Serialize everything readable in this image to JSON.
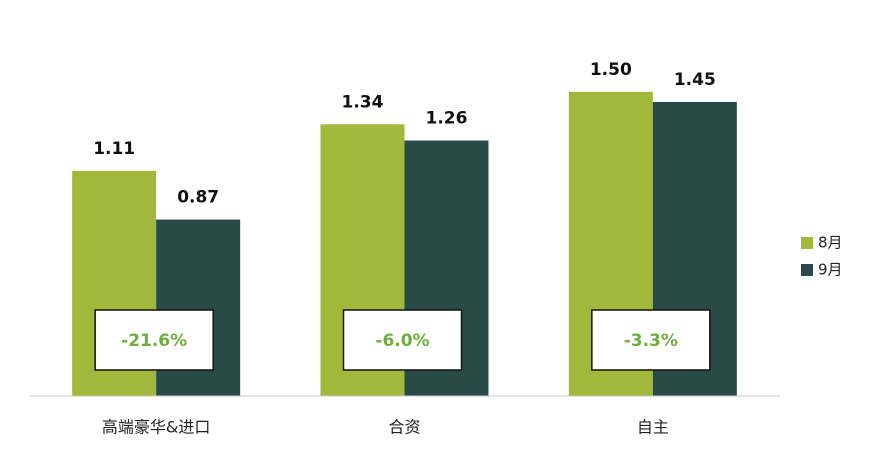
{
  "chart_data": {
    "type": "bar",
    "categories": [
      "高端豪华&进口",
      "合资",
      "自主"
    ],
    "series": [
      {
        "name": "8月",
        "color": "#a2b83a",
        "values": [
          1.11,
          1.34,
          1.5
        ],
        "value_labels": [
          "1.11",
          "1.34",
          "1.50"
        ]
      },
      {
        "name": "9月",
        "color": "#2a4a47",
        "values": [
          0.87,
          1.26,
          1.45
        ],
        "value_labels": [
          "0.87",
          "1.26",
          "1.45"
        ]
      }
    ],
    "annotations": [
      "-21.6%",
      "-6.0%",
      "-3.3%"
    ],
    "ylim": [
      0,
      1.8
    ],
    "legend": "right"
  }
}
